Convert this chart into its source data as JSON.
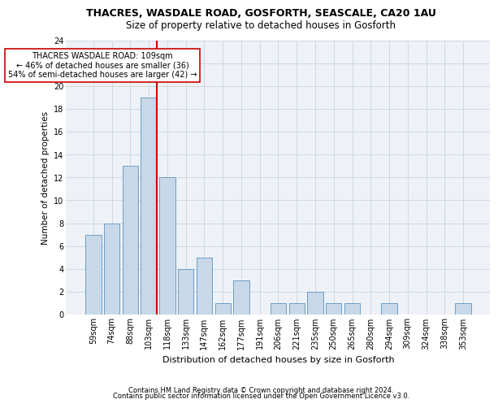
{
  "title1": "THACRES, WASDALE ROAD, GOSFORTH, SEASCALE, CA20 1AU",
  "title2": "Size of property relative to detached houses in Gosforth",
  "xlabel": "Distribution of detached houses by size in Gosforth",
  "ylabel": "Number of detached properties",
  "categories": [
    "59sqm",
    "74sqm",
    "88sqm",
    "103sqm",
    "118sqm",
    "133sqm",
    "147sqm",
    "162sqm",
    "177sqm",
    "191sqm",
    "206sqm",
    "221sqm",
    "235sqm",
    "250sqm",
    "265sqm",
    "280sqm",
    "294sqm",
    "309sqm",
    "324sqm",
    "338sqm",
    "353sqm"
  ],
  "values": [
    7,
    8,
    13,
    19,
    12,
    4,
    5,
    1,
    3,
    0,
    1,
    1,
    2,
    1,
    1,
    0,
    1,
    0,
    0,
    0,
    1
  ],
  "bar_color": "#c8d8e8",
  "bar_edge_color": "#6b9ec8",
  "ref_line_color": "#cc0000",
  "annotation_text": "THACRES WASDALE ROAD: 109sqm\n← 46% of detached houses are smaller (36)\n54% of semi-detached houses are larger (42) →",
  "annotation_box_color": "#ffffff",
  "annotation_box_edge": "#cc0000",
  "ylim": [
    0,
    24
  ],
  "yticks": [
    0,
    2,
    4,
    6,
    8,
    10,
    12,
    14,
    16,
    18,
    20,
    22,
    24
  ],
  "footnote1": "Contains HM Land Registry data © Crown copyright and database right 2024.",
  "footnote2": "Contains public sector information licensed under the Open Government Licence v3.0.",
  "bg_color": "#eef2f7",
  "grid_color": "#cdd8e5",
  "title1_fontsize": 9,
  "title2_fontsize": 8.5,
  "xlabel_fontsize": 8,
  "ylabel_fontsize": 7.5,
  "tick_fontsize": 7,
  "annot_fontsize": 7,
  "footnote_fontsize": 6
}
